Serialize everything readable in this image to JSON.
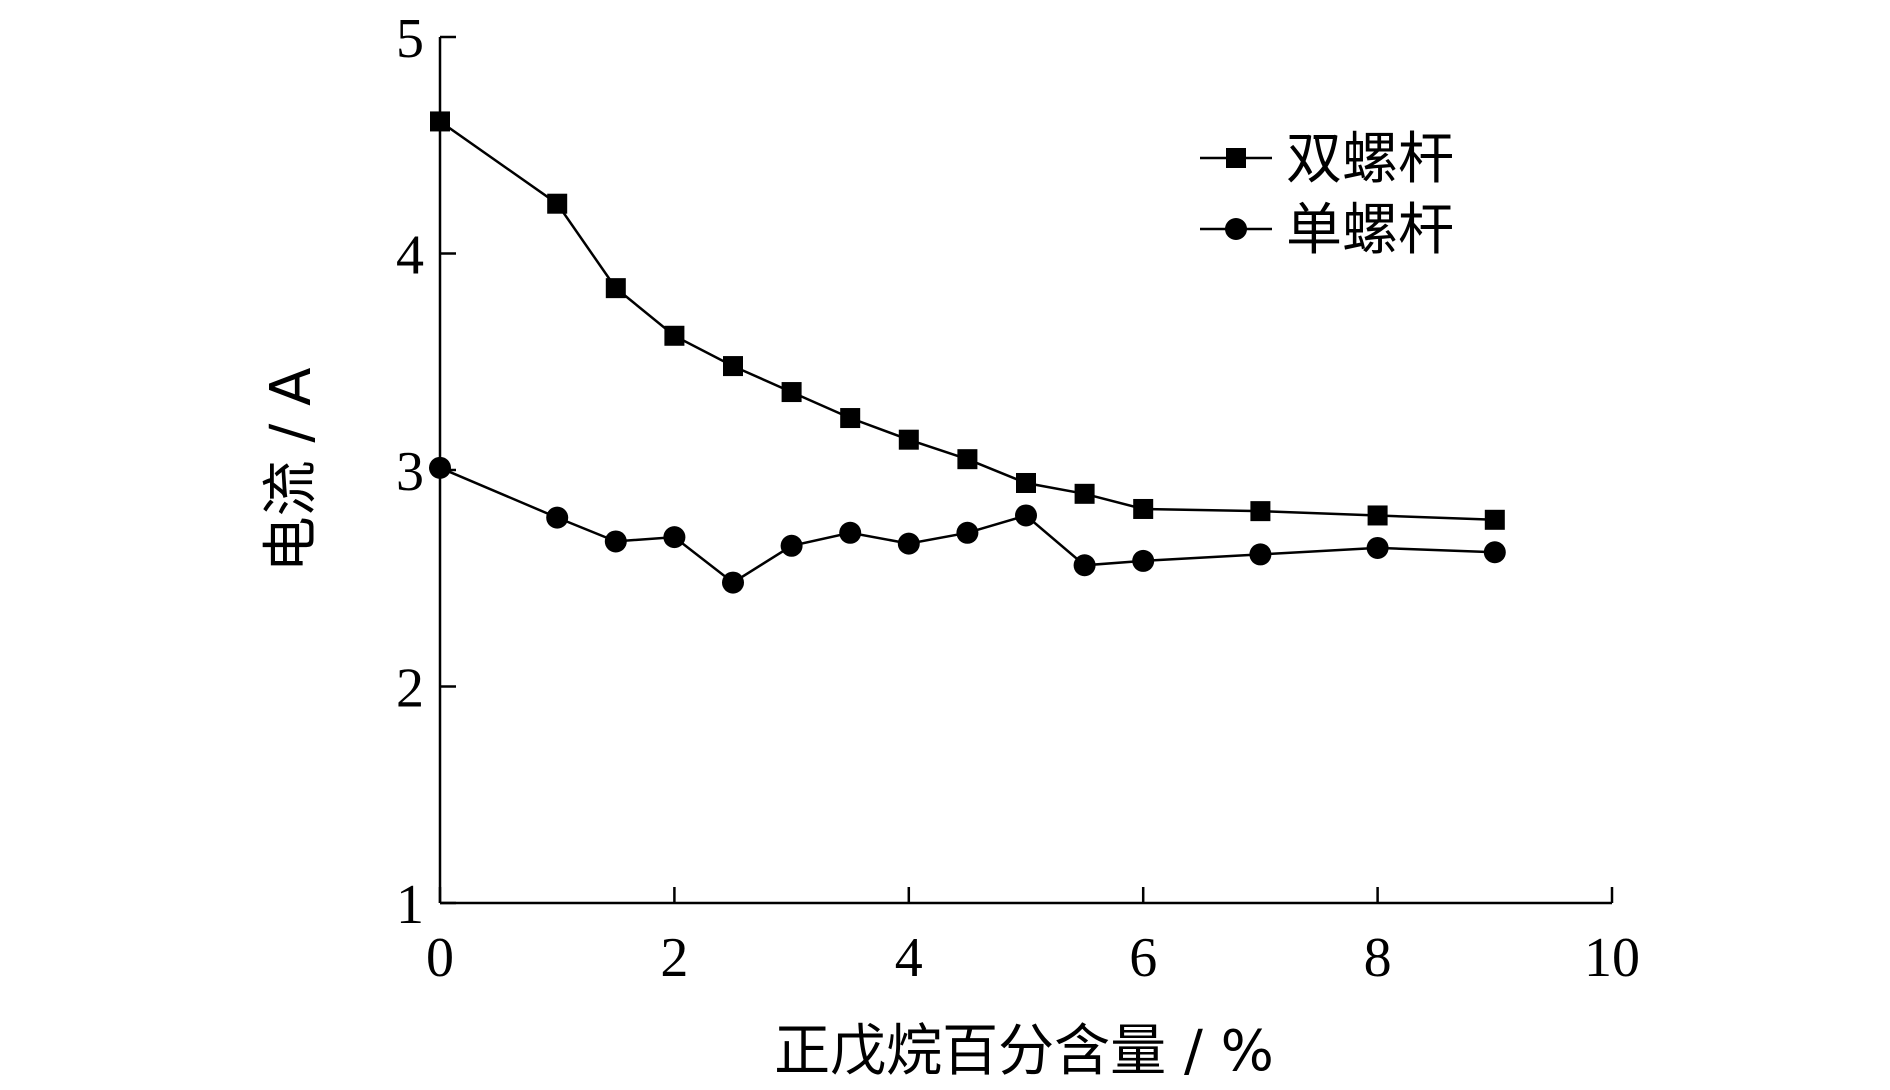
{
  "chart_data": {
    "type": "line",
    "xlabel": "正戊烷百分含量 / %",
    "ylabel": "电流 / A",
    "xlim": [
      0,
      10
    ],
    "ylim": [
      1,
      5
    ],
    "x_ticks": [
      0,
      2,
      4,
      6,
      8,
      10
    ],
    "y_ticks": [
      1,
      2,
      3,
      4,
      5
    ],
    "grid": false,
    "legend_position": "top-right",
    "series": [
      {
        "name": "双螺杆",
        "marker": "square",
        "color": "#000000",
        "x": [
          0,
          1,
          1.5,
          2,
          2.5,
          3,
          3.5,
          4,
          4.5,
          5,
          5.5,
          6,
          7,
          8,
          9
        ],
        "y": [
          4.61,
          4.23,
          3.84,
          3.62,
          3.48,
          3.36,
          3.24,
          3.14,
          3.05,
          2.94,
          2.89,
          2.82,
          2.81,
          2.79,
          2.77
        ]
      },
      {
        "name": "单螺杆",
        "marker": "circle",
        "color": "#000000",
        "x": [
          0,
          1,
          1.5,
          2,
          2.5,
          3,
          3.5,
          4,
          4.5,
          5,
          5.5,
          6,
          7,
          8,
          9
        ],
        "y": [
          3.01,
          2.78,
          2.67,
          2.69,
          2.48,
          2.65,
          2.71,
          2.66,
          2.71,
          2.79,
          2.56,
          2.58,
          2.61,
          2.64,
          2.62
        ]
      }
    ]
  }
}
